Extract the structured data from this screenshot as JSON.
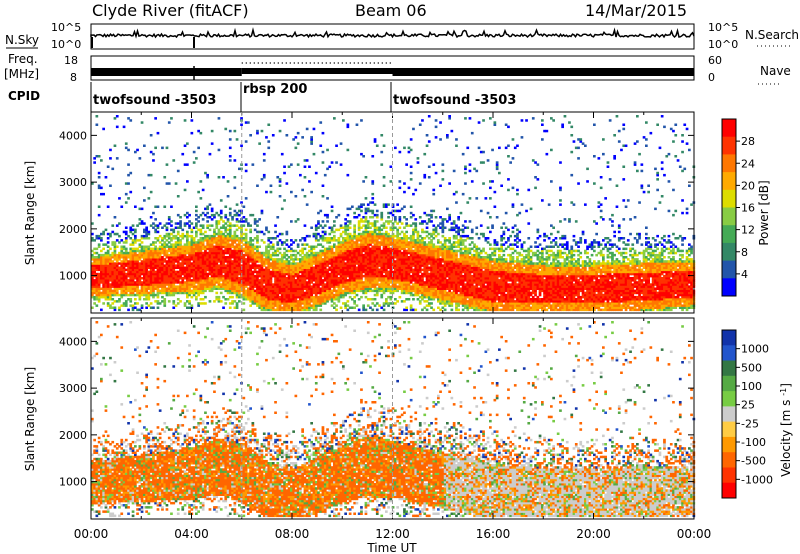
{
  "header": {
    "station": "Clyde River (fitACF)",
    "beam": "Beam 06",
    "date": "14/Mar/2015"
  },
  "nsky": {
    "label": "N.Sky",
    "right_label": "N.Search",
    "left_ticks": [
      "10^5",
      "10^0"
    ],
    "right_ticks": [
      "10^5",
      "10^0"
    ]
  },
  "freq": {
    "label_top": "Freq.",
    "label_unit": "[MHz]",
    "right_label": "Nave",
    "left_ticks": [
      "18",
      "8"
    ],
    "right_ticks": [
      "60",
      "0"
    ]
  },
  "cpid": {
    "label": "CPID",
    "segments": [
      {
        "name": "twofsound -3503",
        "start": 0,
        "end": 6
      },
      {
        "name": "rbsp 200",
        "start": 6,
        "end": 12
      },
      {
        "name": "twofsound -3503",
        "start": 12,
        "end": 24
      }
    ]
  },
  "time_axis": {
    "label": "Time UT",
    "ticks": [
      "00:00",
      "04:00",
      "08:00",
      "12:00",
      "16:00",
      "20:00",
      "00:00"
    ]
  },
  "chart_data": [
    {
      "type": "heatmap",
      "panel": "power",
      "xlabel": "Time UT",
      "ylabel": "Slant Range [km]",
      "xlim": [
        0,
        24
      ],
      "ylim": [
        200,
        4500
      ],
      "yticks": [
        1000,
        2000,
        3000,
        4000
      ],
      "colorbar": {
        "label": "Power [dB]",
        "ticks": [
          "28",
          "24",
          "20",
          "16",
          "12",
          "8",
          "4"
        ],
        "colors": [
          "#ff0000",
          "#ff3300",
          "#ff7700",
          "#ffaa00",
          "#dddd00",
          "#88cc44",
          "#44aa55",
          "#338866",
          "#2255aa",
          "#0000ff"
        ]
      },
      "bands": [
        {
          "t": [
            0,
            2,
            4,
            5,
            6,
            7,
            8,
            9,
            10,
            11,
            12,
            14,
            16,
            18,
            20,
            22,
            24
          ],
          "center": [
            950,
            1050,
            1150,
            1300,
            1150,
            800,
            700,
            900,
            1150,
            1300,
            1250,
            1000,
            750,
            700,
            700,
            750,
            800
          ],
          "width": [
            450,
            500,
            550,
            600,
            650,
            600,
            550,
            600,
            600,
            650,
            600,
            600,
            600,
            550,
            550,
            550,
            500
          ]
        }
      ]
    },
    {
      "type": "heatmap",
      "panel": "velocity",
      "xlabel": "Time UT",
      "ylabel": "Slant Range [km]",
      "xlim": [
        0,
        24
      ],
      "ylim": [
        200,
        4500
      ],
      "yticks": [
        1000,
        2000,
        3000,
        4000
      ],
      "colorbar": {
        "label": "Velocity [m s^-1]",
        "ticks": [
          "1000",
          "500",
          "100",
          "25",
          "-25",
          "-100",
          "-500",
          "-1000"
        ],
        "colors": [
          "#1133aa",
          "#2255cc",
          "#337744",
          "#55aa44",
          "#77cc44",
          "#cccccc",
          "#ffcc44",
          "#ff9900",
          "#ff6600",
          "#ff3300",
          "#ff0000"
        ]
      }
    }
  ],
  "colors": {
    "frame": "#000000",
    "dashed": "#999999"
  }
}
